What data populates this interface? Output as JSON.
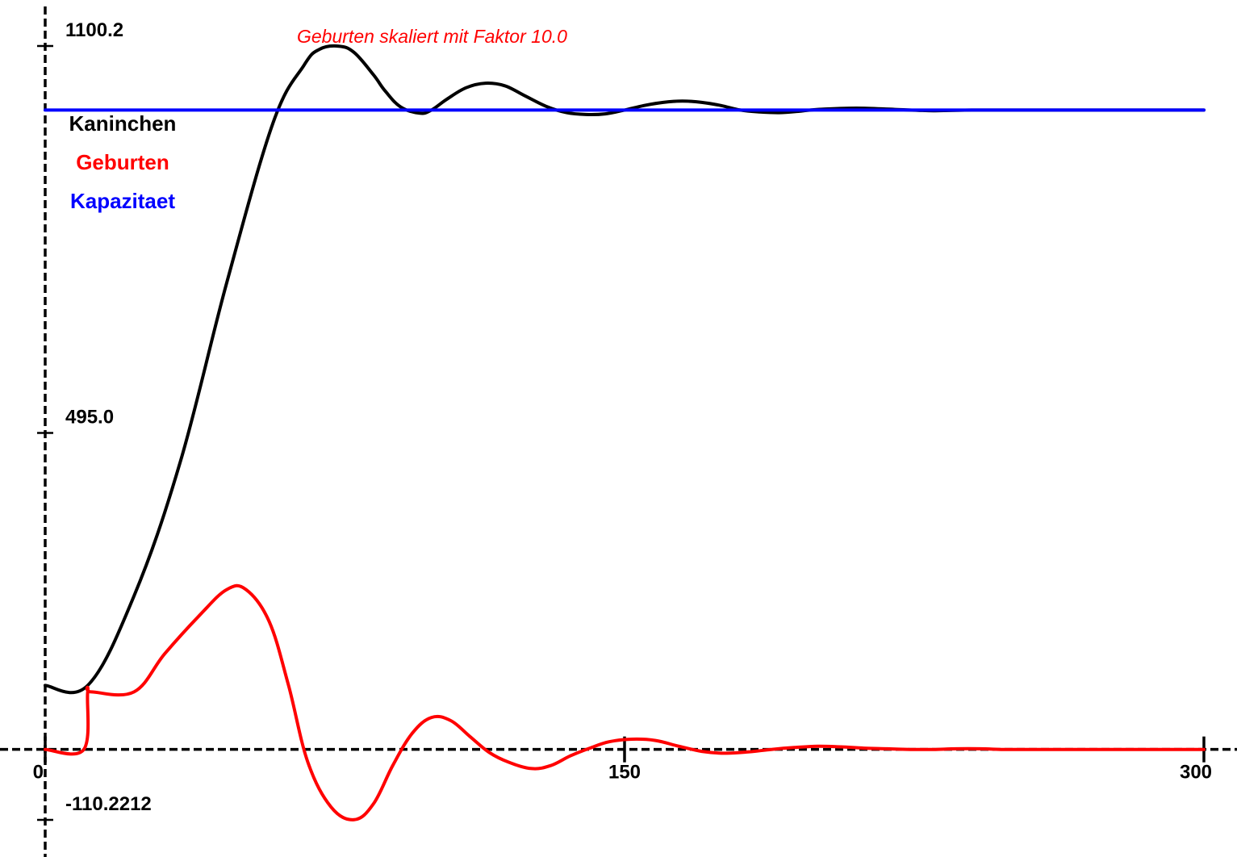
{
  "chart_data": {
    "type": "line",
    "title": "",
    "xlabel": "",
    "ylabel": "",
    "xlim": [
      0,
      300
    ],
    "ylim": [
      -110.2212,
      1100.2
    ],
    "x_ticks": [
      {
        "value": 0,
        "label": "0"
      },
      {
        "value": 150,
        "label": "150"
      },
      {
        "value": 300,
        "label": "300"
      }
    ],
    "y_ticks": [
      {
        "value": 1100.2,
        "label": "1100.2"
      },
      {
        "value": 495.0,
        "label": "495.0"
      },
      {
        "value": -110.2212,
        "label": "-110.2212"
      }
    ],
    "annotation": {
      "text": "Geburten skaliert mit Faktor 10.0",
      "color": "#ff0000"
    },
    "grid": false,
    "legend_placement": "top-left",
    "series": [
      {
        "name": "Kaninchen",
        "color": "#000000",
        "x": [
          0,
          11,
          23,
          35,
          47,
          59,
          67,
          71,
          76,
          80,
          85,
          88,
          92,
          97,
          100,
          104,
          109,
          114,
          119,
          124,
          130,
          135,
          140,
          145,
          150,
          155,
          160,
          165,
          170,
          175,
          180,
          185,
          190,
          195,
          200,
          210,
          220,
          230,
          240,
          250,
          260,
          270,
          280,
          290,
          300
        ],
        "y": [
          100,
          100,
          240,
          450,
          730,
          980,
          1070,
          1095,
          1100,
          1090,
          1055,
          1030,
          1005,
          995,
          1000,
          1017,
          1035,
          1042,
          1038,
          1023,
          1005,
          996,
          993,
          994,
          1000,
          1007,
          1012,
          1014,
          1012,
          1007,
          1000,
          997,
          996,
          998,
          1001,
          1003,
          1001,
          999,
          1000,
          1000,
          1000,
          1000,
          1000,
          1000,
          1000
        ]
      },
      {
        "name": "Geburten",
        "color": "#ff0000",
        "x": [
          0,
          10,
          11,
          12,
          23,
          31,
          40,
          47,
          52,
          58,
          63,
          68,
          74,
          80,
          85,
          90,
          95,
          100,
          105,
          110,
          115,
          120,
          126,
          131,
          136,
          141,
          146,
          152,
          158,
          164,
          170,
          176,
          182,
          188,
          194,
          200,
          206,
          212,
          218,
          224,
          230,
          236,
          242,
          248,
          254,
          260,
          270,
          280,
          290,
          300
        ],
        "y": [
          0,
          0,
          90,
          90,
          90,
          150,
          210,
          250,
          250,
          200,
          100,
          -20,
          -90,
          -110,
          -85,
          -25,
          25,
          50,
          45,
          20,
          -5,
          -20,
          -30,
          -25,
          -10,
          2,
          12,
          16,
          14,
          5,
          -3,
          -6,
          -4,
          0,
          3,
          5,
          4,
          2,
          1,
          0,
          0,
          1,
          1,
          0,
          0,
          0,
          0,
          0,
          0,
          0
        ]
      },
      {
        "name": "Kapazitaet",
        "color": "#0000ff",
        "x": [
          0,
          300
        ],
        "y": [
          1000,
          1000
        ]
      }
    ]
  }
}
